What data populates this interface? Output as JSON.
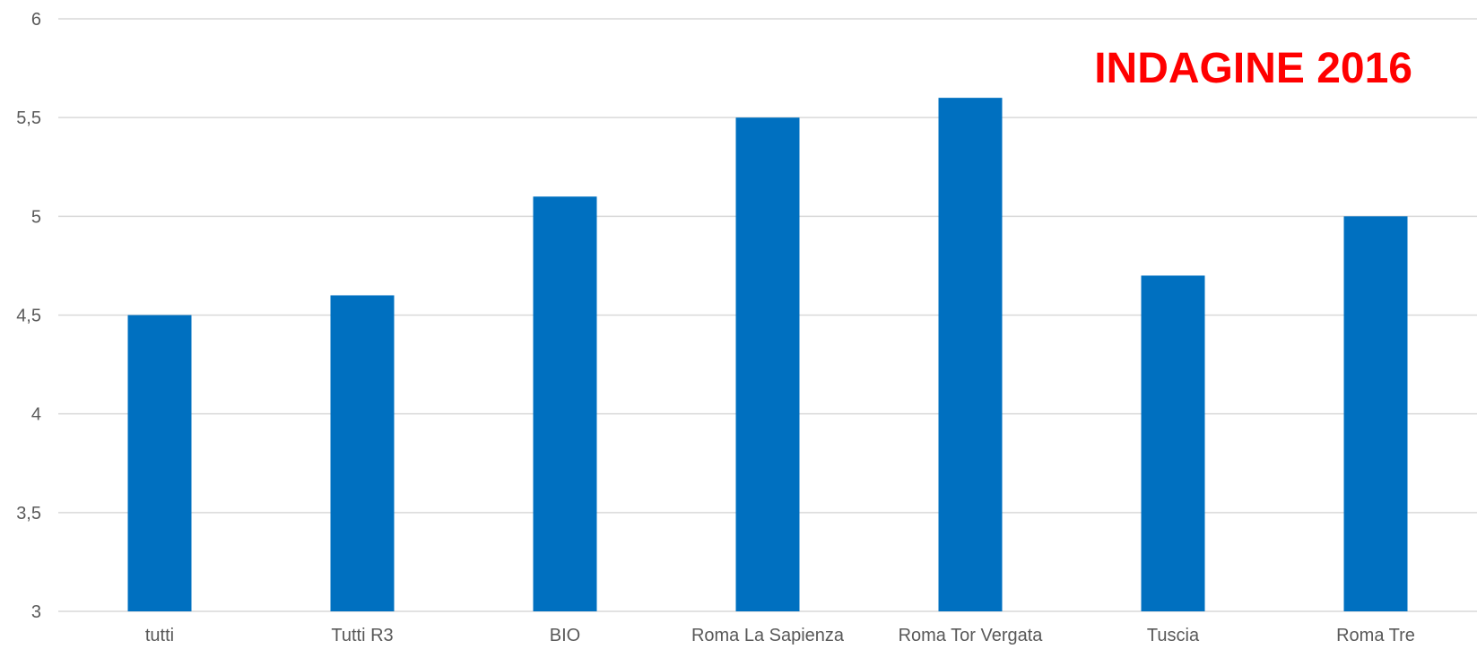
{
  "chart_data": {
    "type": "bar",
    "title": "INDAGINE 2016",
    "categories": [
      "tutti",
      "Tutti R3",
      "BIO",
      "Roma La Sapienza",
      "Roma Tor Vergata",
      "Tuscia",
      "Roma Tre"
    ],
    "values": [
      4.5,
      4.6,
      5.1,
      5.5,
      5.6,
      4.7,
      5.0
    ],
    "ylim": [
      3,
      6
    ],
    "yticks": [
      "3",
      "3,5",
      "4",
      "4,5",
      "5",
      "5,5",
      "6"
    ],
    "xlabel": "",
    "ylabel": "",
    "grid": true,
    "legend": "none"
  },
  "colors": {
    "bar": "#0070C0",
    "title": "#FF0000",
    "grid": "#D9D9D9",
    "text": "#595959"
  }
}
